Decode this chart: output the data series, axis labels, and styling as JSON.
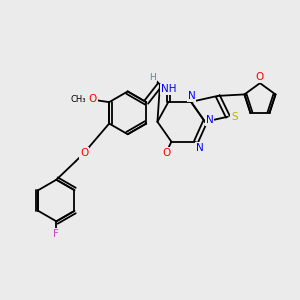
{
  "background_color": "#ebebeb",
  "figsize": [
    3.0,
    3.0
  ],
  "dpi": 100,
  "atom_colors": {
    "C": "#000000",
    "H": "#4a8f8f",
    "N": "#0000ff",
    "O": "#ff0000",
    "S": "#b8b800",
    "F": "#cc44cc"
  },
  "bond_color": "#000000",
  "bond_width": 1.3,
  "font_size": 7.5
}
